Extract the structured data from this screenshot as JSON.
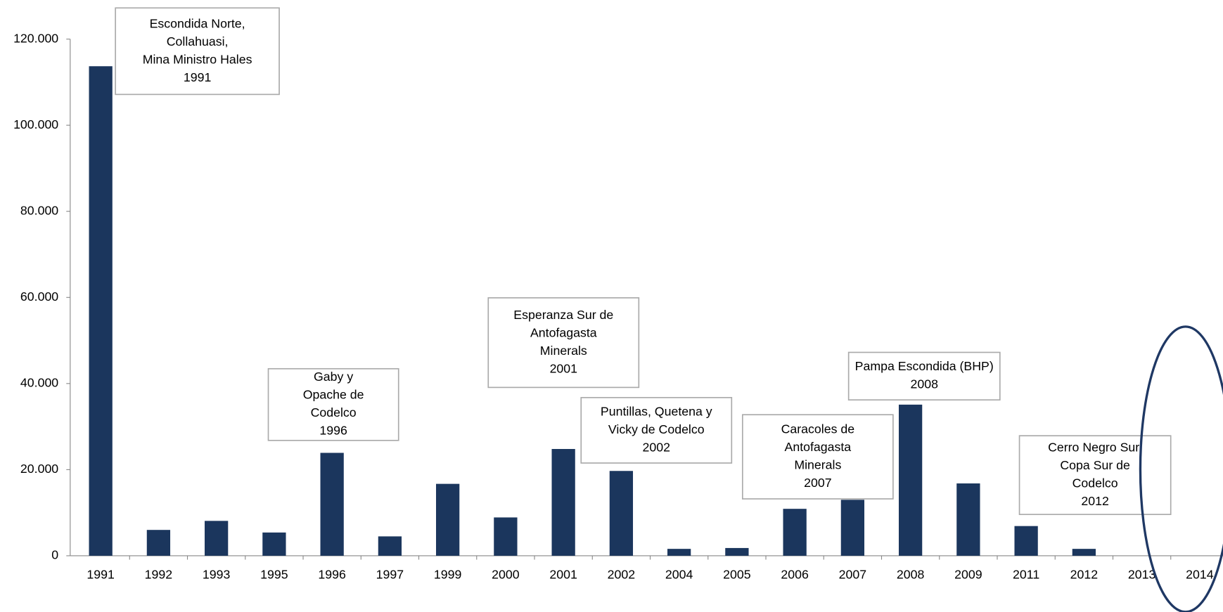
{
  "chart_data": {
    "type": "bar",
    "categories": [
      "1991",
      "1992",
      "1993",
      "1995",
      "1996",
      "1997",
      "1999",
      "2000",
      "2001",
      "2002",
      "2004",
      "2005",
      "2006",
      "2007",
      "2008",
      "2009",
      "2011",
      "2012",
      "2013",
      "2014"
    ],
    "values": [
      113700,
      6000,
      8100,
      5400,
      23900,
      4500,
      16700,
      8900,
      24800,
      19700,
      1600,
      1800,
      10900,
      13000,
      35100,
      16800,
      6900,
      1600,
      0,
      0
    ],
    "color": "#1b365d",
    "ylim": [
      0,
      120000
    ],
    "yticks": [
      0,
      {
        "value": 20000,
        "label": "20.000"
      },
      {
        "value": 40000,
        "label": "40.000"
      },
      {
        "value": 60000,
        "label": "60.000"
      },
      {
        "value": 80000,
        "label": "80.000"
      },
      {
        "value": 100000,
        "label": "100.000"
      },
      {
        "value": 120000,
        "label": "120.000"
      }
    ],
    "annotations": [
      [
        "Escondida Norte,",
        "Collahuasi,",
        "Mina Ministro Hales",
        "1991"
      ],
      [
        "Gaby y",
        "Opache de",
        "Codelco",
        "1996"
      ],
      [
        "Esperanza Sur de",
        "Antofagasta",
        "Minerals",
        "2001"
      ],
      [
        "Puntillas, Quetena y",
        "Vicky de Codelco",
        "2002"
      ],
      [
        "Caracoles de",
        "Antofagasta",
        "Minerals",
        "2007"
      ],
      [
        "Pampa Escondida (BHP)",
        "2008"
      ],
      [
        "Cerro Negro Sur,",
        "Copa Sur de",
        "Codelco",
        "2012"
      ]
    ]
  }
}
